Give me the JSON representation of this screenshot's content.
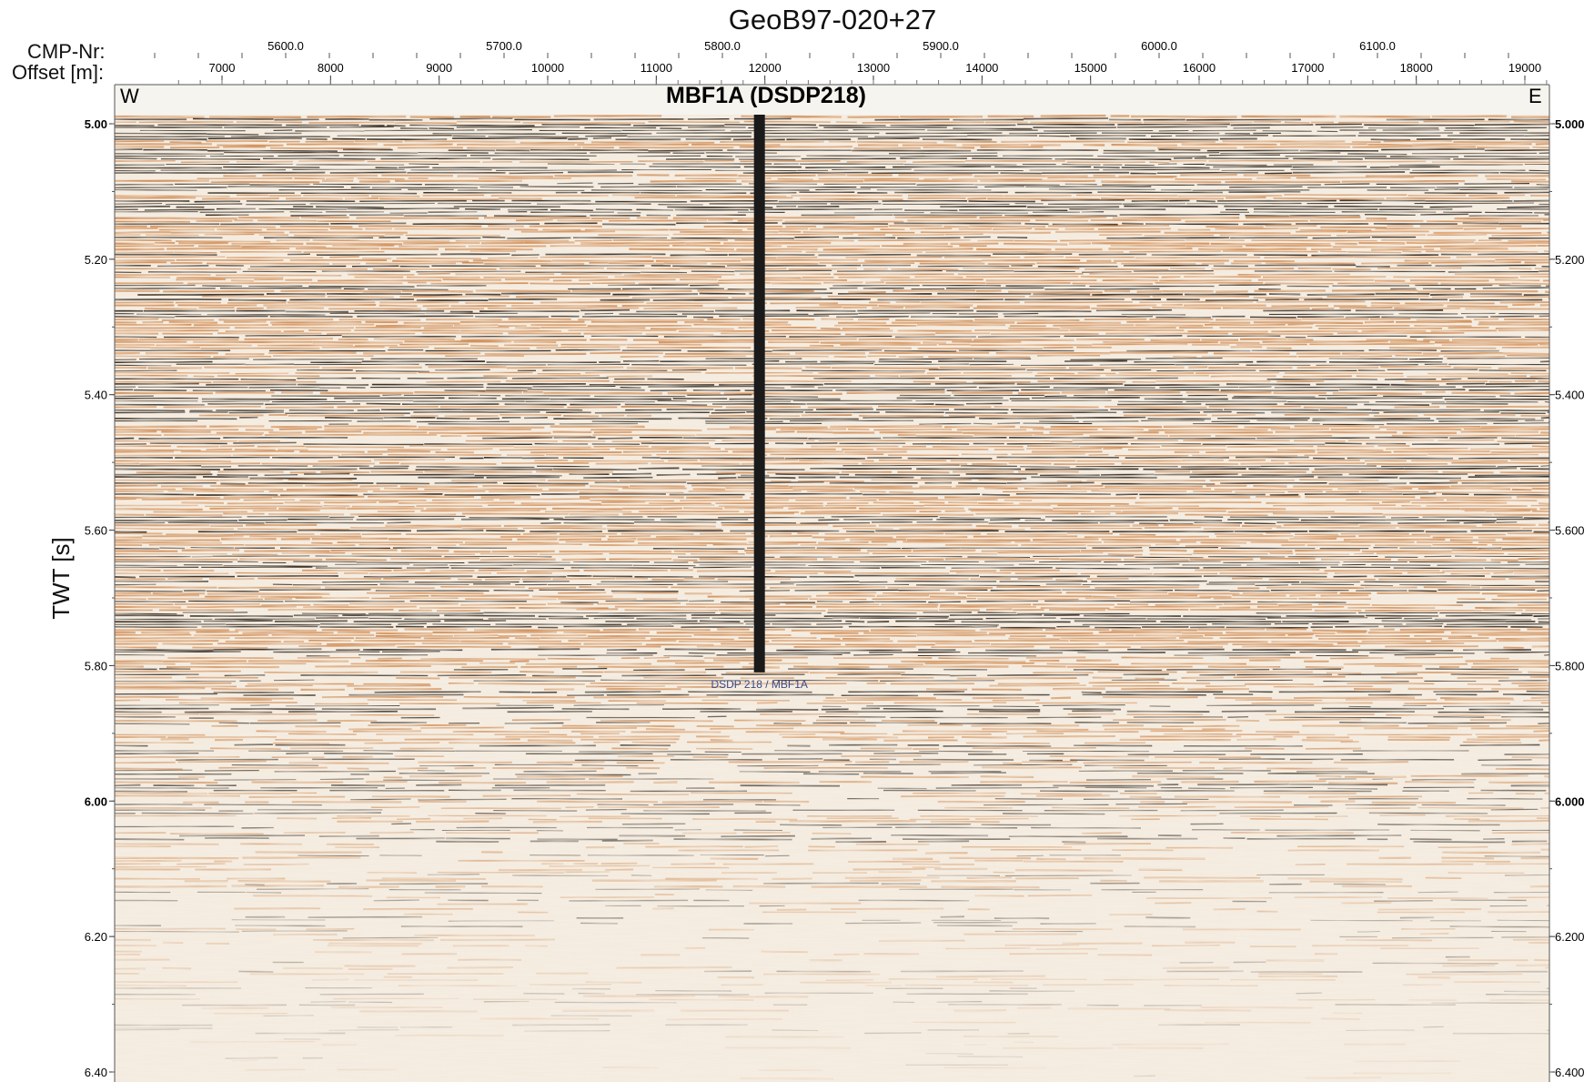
{
  "figure": {
    "title": "GeoB97-020+27",
    "cmp_label": "CMP-Nr:",
    "offset_label": "Offset [m]:",
    "section_label": "MBF1A (DSDP218)",
    "west_label": "W",
    "east_label": "E",
    "y_axis_label": "TWT [s]",
    "well_label": "DSDP 218 / MBF1A"
  },
  "chart_data": {
    "type": "heatmap",
    "description_kind": "seismic-section",
    "title": "GeoB97-020+27",
    "ylabel": "TWT [s]",
    "ylim": [
      5.0,
      6.4
    ],
    "y_ticks_left": [
      "5.00",
      "5.20",
      "5.40",
      "5.60",
      "5.80",
      "6.00",
      "6.20",
      "6.40"
    ],
    "y_ticks_right": [
      "5.000",
      "5.200",
      "5.400",
      "5.600",
      "5.800",
      "6.000",
      "6.200",
      "6.400"
    ],
    "y_tick_values": [
      5.0,
      5.2,
      5.4,
      5.6,
      5.8,
      6.0,
      6.2,
      6.4
    ],
    "cmp_ticks": [
      "5600.0",
      "5700.0",
      "5800.0",
      "5900.0",
      "6000.0",
      "6100.0"
    ],
    "cmp_tick_values": [
      5600,
      5700,
      5800,
      5900,
      6000,
      6100
    ],
    "offset_ticks": [
      "7000",
      "8000",
      "9000",
      "10000",
      "11000",
      "12000",
      "13000",
      "14000",
      "15000",
      "16000",
      "17000",
      "18000",
      "19000"
    ],
    "offset_tick_values": [
      7000,
      8000,
      9000,
      10000,
      11000,
      12000,
      13000,
      14000,
      15000,
      16000,
      17000,
      18000,
      19000
    ],
    "well": {
      "name": "DSDP 218 / MBF1A",
      "offset_m": 11950,
      "top_twt": 5.0,
      "bottom_twt": 5.81
    },
    "colors": {
      "strong_reflector": "#1a1008",
      "mid": "#c97a3a",
      "light": "#f2e6d6",
      "background_noise": "#f7f2ea",
      "well": "#1a1a1a",
      "well_label": "#3a4a8a"
    }
  }
}
